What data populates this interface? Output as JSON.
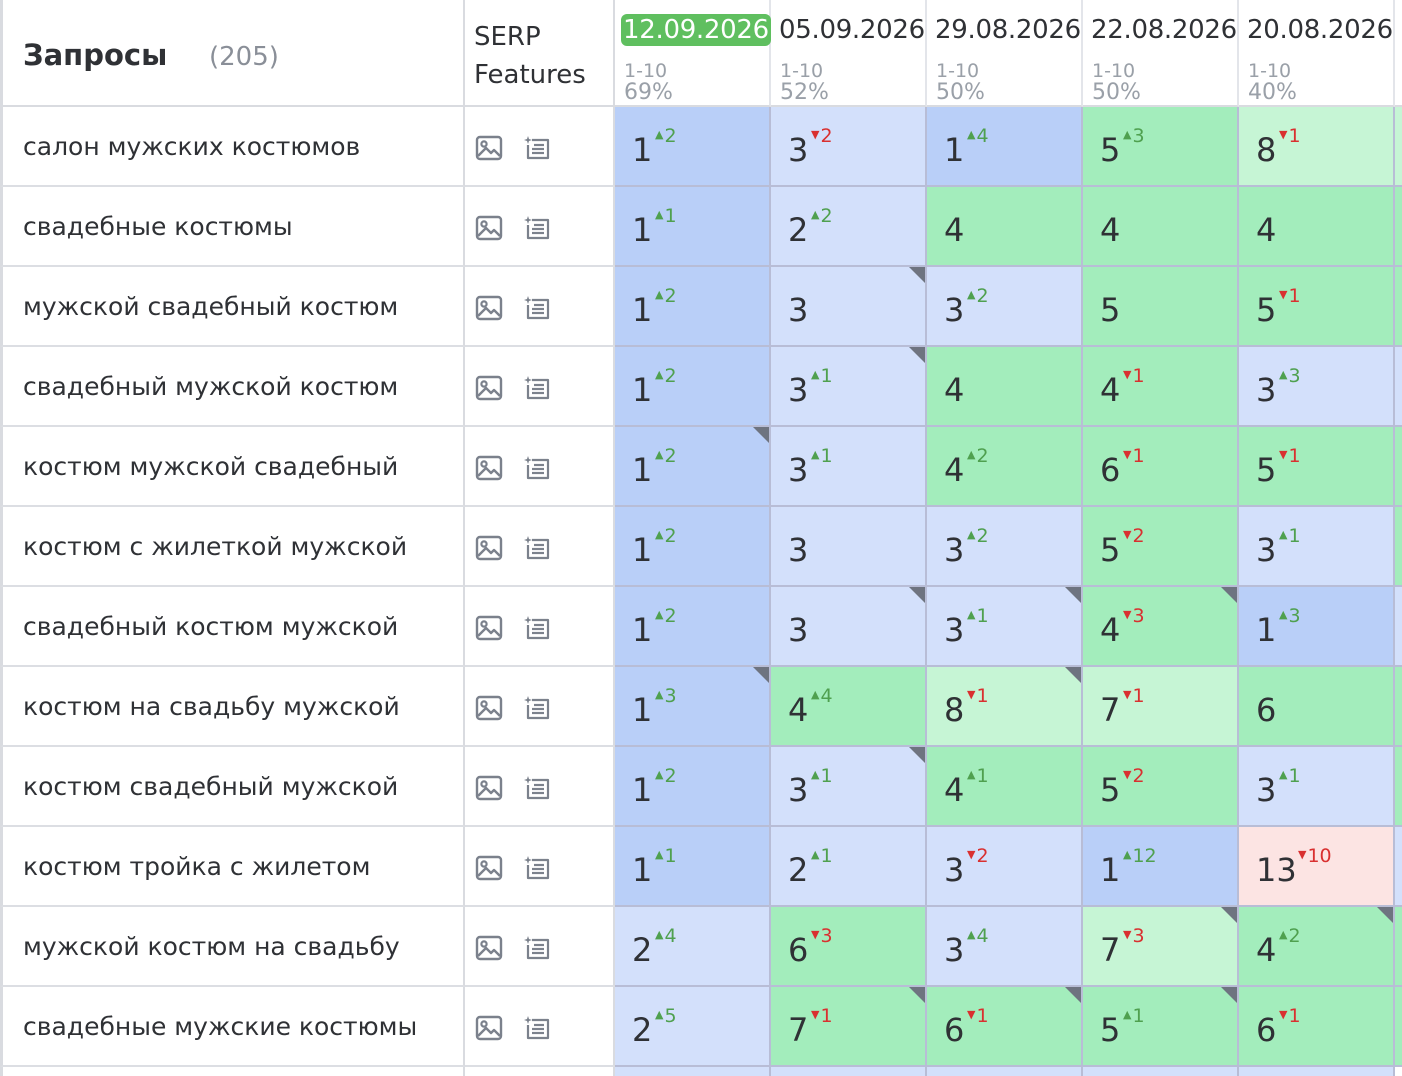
{
  "colors": {
    "top": "#b9cff8",
    "high": "#d3e0fb",
    "mid": "#a3edbc",
    "low": "#c6f5d5",
    "bad": "#fce4e3",
    "current_date_bg": "#5fbf5f"
  },
  "header": {
    "queries_title": "Запросы",
    "queries_count": "(205)",
    "serp_label_1": "SERP",
    "serp_label_2": "Features",
    "dates": [
      {
        "date": "12.09.2026",
        "range": "1-10",
        "percent": "69%",
        "current": true
      },
      {
        "date": "05.09.2026",
        "range": "1-10",
        "percent": "52%",
        "current": false
      },
      {
        "date": "29.08.2026",
        "range": "1-10",
        "percent": "50%",
        "current": false
      },
      {
        "date": "22.08.2026",
        "range": "1-10",
        "percent": "50%",
        "current": false
      },
      {
        "date": "20.08.2026",
        "range": "1-10",
        "percent": "40%",
        "current": false
      }
    ]
  },
  "serp_icons": [
    "image-icon",
    "featured-snippet-icon"
  ],
  "rows": [
    {
      "query": "салон мужских костюмов",
      "next_color": "low",
      "cells": [
        {
          "v": "1",
          "d": "2",
          "dir": "up",
          "c": "top",
          "m": false
        },
        {
          "v": "3",
          "d": "2",
          "dir": "dn",
          "c": "high",
          "m": false
        },
        {
          "v": "1",
          "d": "4",
          "dir": "up",
          "c": "top",
          "m": false
        },
        {
          "v": "5",
          "d": "3",
          "dir": "up",
          "c": "mid",
          "m": false
        },
        {
          "v": "8",
          "d": "1",
          "dir": "dn",
          "c": "low",
          "m": false
        }
      ]
    },
    {
      "query": "свадебные костюмы",
      "next_color": "mid",
      "cells": [
        {
          "v": "1",
          "d": "1",
          "dir": "up",
          "c": "top",
          "m": false
        },
        {
          "v": "2",
          "d": "2",
          "dir": "up",
          "c": "high",
          "m": false
        },
        {
          "v": "4",
          "d": "",
          "dir": "",
          "c": "mid",
          "m": false
        },
        {
          "v": "4",
          "d": "",
          "dir": "",
          "c": "mid",
          "m": false
        },
        {
          "v": "4",
          "d": "",
          "dir": "",
          "c": "mid",
          "m": false
        }
      ]
    },
    {
      "query": "мужской свадебный костюм",
      "next_color": "mid",
      "cells": [
        {
          "v": "1",
          "d": "2",
          "dir": "up",
          "c": "top",
          "m": false
        },
        {
          "v": "3",
          "d": "",
          "dir": "",
          "c": "high",
          "m": true
        },
        {
          "v": "3",
          "d": "2",
          "dir": "up",
          "c": "high",
          "m": false
        },
        {
          "v": "5",
          "d": "",
          "dir": "",
          "c": "mid",
          "m": false
        },
        {
          "v": "5",
          "d": "1",
          "dir": "dn",
          "c": "mid",
          "m": false
        }
      ]
    },
    {
      "query": "свадебный мужской костюм",
      "next_color": "high",
      "cells": [
        {
          "v": "1",
          "d": "2",
          "dir": "up",
          "c": "top",
          "m": false
        },
        {
          "v": "3",
          "d": "1",
          "dir": "up",
          "c": "high",
          "m": true
        },
        {
          "v": "4",
          "d": "",
          "dir": "",
          "c": "mid",
          "m": false
        },
        {
          "v": "4",
          "d": "1",
          "dir": "dn",
          "c": "mid",
          "m": false
        },
        {
          "v": "3",
          "d": "3",
          "dir": "up",
          "c": "high",
          "m": false
        }
      ]
    },
    {
      "query": "костюм мужской свадебный",
      "next_color": "mid",
      "cells": [
        {
          "v": "1",
          "d": "2",
          "dir": "up",
          "c": "top",
          "m": true
        },
        {
          "v": "3",
          "d": "1",
          "dir": "up",
          "c": "high",
          "m": false
        },
        {
          "v": "4",
          "d": "2",
          "dir": "up",
          "c": "mid",
          "m": false
        },
        {
          "v": "6",
          "d": "1",
          "dir": "dn",
          "c": "mid",
          "m": false
        },
        {
          "v": "5",
          "d": "1",
          "dir": "dn",
          "c": "mid",
          "m": false
        }
      ]
    },
    {
      "query": "костюм с жилеткой мужской",
      "next_color": "mid",
      "cells": [
        {
          "v": "1",
          "d": "2",
          "dir": "up",
          "c": "top",
          "m": false
        },
        {
          "v": "3",
          "d": "",
          "dir": "",
          "c": "high",
          "m": false
        },
        {
          "v": "3",
          "d": "2",
          "dir": "up",
          "c": "high",
          "m": false
        },
        {
          "v": "5",
          "d": "2",
          "dir": "dn",
          "c": "mid",
          "m": false
        },
        {
          "v": "3",
          "d": "1",
          "dir": "up",
          "c": "high",
          "m": false
        }
      ]
    },
    {
      "query": "свадебный костюм мужской",
      "next_color": "high",
      "cells": [
        {
          "v": "1",
          "d": "2",
          "dir": "up",
          "c": "top",
          "m": false
        },
        {
          "v": "3",
          "d": "",
          "dir": "",
          "c": "high",
          "m": true
        },
        {
          "v": "3",
          "d": "1",
          "dir": "up",
          "c": "high",
          "m": true
        },
        {
          "v": "4",
          "d": "3",
          "dir": "dn",
          "c": "mid",
          "m": true
        },
        {
          "v": "1",
          "d": "3",
          "dir": "up",
          "c": "top",
          "m": false
        }
      ]
    },
    {
      "query": "костюм на свадьбу мужской",
      "next_color": "mid",
      "cells": [
        {
          "v": "1",
          "d": "3",
          "dir": "up",
          "c": "top",
          "m": true
        },
        {
          "v": "4",
          "d": "4",
          "dir": "up",
          "c": "mid",
          "m": false
        },
        {
          "v": "8",
          "d": "1",
          "dir": "dn",
          "c": "low",
          "m": true
        },
        {
          "v": "7",
          "d": "1",
          "dir": "dn",
          "c": "low",
          "m": false
        },
        {
          "v": "6",
          "d": "",
          "dir": "",
          "c": "mid",
          "m": false
        }
      ]
    },
    {
      "query": "костюм свадебный мужской",
      "next_color": "mid",
      "cells": [
        {
          "v": "1",
          "d": "2",
          "dir": "up",
          "c": "top",
          "m": false
        },
        {
          "v": "3",
          "d": "1",
          "dir": "up",
          "c": "high",
          "m": true
        },
        {
          "v": "4",
          "d": "1",
          "dir": "up",
          "c": "mid",
          "m": false
        },
        {
          "v": "5",
          "d": "2",
          "dir": "dn",
          "c": "mid",
          "m": false
        },
        {
          "v": "3",
          "d": "1",
          "dir": "up",
          "c": "high",
          "m": false
        }
      ]
    },
    {
      "query": "костюм тройка с жилетом",
      "next_color": "high",
      "cells": [
        {
          "v": "1",
          "d": "1",
          "dir": "up",
          "c": "top",
          "m": false
        },
        {
          "v": "2",
          "d": "1",
          "dir": "up",
          "c": "high",
          "m": false
        },
        {
          "v": "3",
          "d": "2",
          "dir": "dn",
          "c": "high",
          "m": false
        },
        {
          "v": "1",
          "d": "12",
          "dir": "up",
          "c": "top",
          "m": false
        },
        {
          "v": "13",
          "d": "10",
          "dir": "dn",
          "c": "bad",
          "m": false
        }
      ]
    },
    {
      "query": "мужской костюм на свадьбу",
      "next_color": "mid",
      "cells": [
        {
          "v": "2",
          "d": "4",
          "dir": "up",
          "c": "high",
          "m": false
        },
        {
          "v": "6",
          "d": "3",
          "dir": "dn",
          "c": "mid",
          "m": false
        },
        {
          "v": "3",
          "d": "4",
          "dir": "up",
          "c": "high",
          "m": false
        },
        {
          "v": "7",
          "d": "3",
          "dir": "dn",
          "c": "low",
          "m": true
        },
        {
          "v": "4",
          "d": "2",
          "dir": "up",
          "c": "mid",
          "m": true
        }
      ]
    },
    {
      "query": "свадебные мужские костюмы",
      "next_color": "mid",
      "cells": [
        {
          "v": "2",
          "d": "5",
          "dir": "up",
          "c": "high",
          "m": false
        },
        {
          "v": "7",
          "d": "1",
          "dir": "dn",
          "c": "mid",
          "m": true
        },
        {
          "v": "6",
          "d": "1",
          "dir": "dn",
          "c": "mid",
          "m": true
        },
        {
          "v": "5",
          "d": "1",
          "dir": "up",
          "c": "mid",
          "m": true
        },
        {
          "v": "6",
          "d": "1",
          "dir": "dn",
          "c": "mid",
          "m": false
        }
      ]
    }
  ]
}
